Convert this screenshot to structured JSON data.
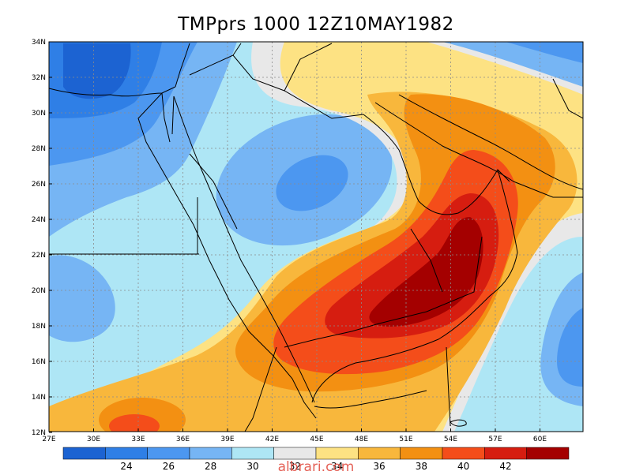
{
  "title": "TMPprs 1000 12Z10MAY1982",
  "watermark": "albrari.com",
  "lat_labels": [
    "34N",
    "32N",
    "30N",
    "28N",
    "26N",
    "24N",
    "22N",
    "20N",
    "18N",
    "16N",
    "14N",
    "12N"
  ],
  "lon_labels": [
    "27E",
    "30E",
    "33E",
    "36E",
    "39E",
    "42E",
    "45E",
    "48E",
    "51E",
    "54E",
    "57E",
    "60E"
  ],
  "colorbar": {
    "colors": [
      "#1c63d2",
      "#2f7fe6",
      "#4c97f0",
      "#76b5f4",
      "#aee6f5",
      "#e8e8e8",
      "#fde283",
      "#f8b73c",
      "#f39012",
      "#f44d1a",
      "#d61d10",
      "#a40000"
    ],
    "labels": [
      "24",
      "26",
      "28",
      "30",
      "32",
      "34",
      "36",
      "38",
      "40",
      "42"
    ]
  },
  "colors": {
    "background": "#ffffff",
    "coast": "#000000"
  }
}
